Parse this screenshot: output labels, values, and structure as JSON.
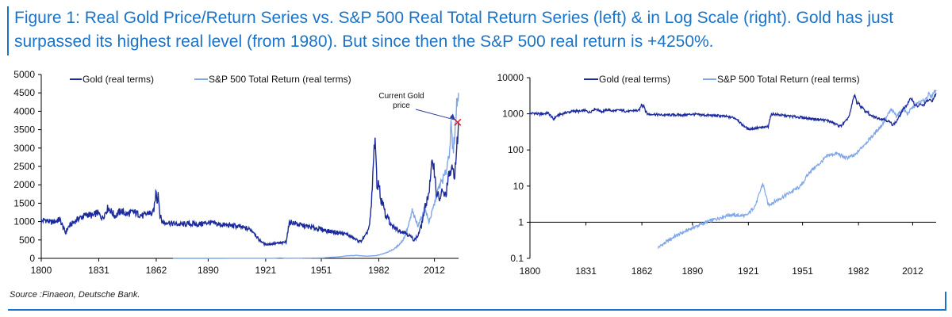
{
  "header": {
    "title": "Figure 1: Real Gold Price/Return Series vs. S&P 500 Real Total Return Series (left) & in Log Scale (right). Gold has just surpassed its highest real level (from 1980). But since then the S&P 500 real return is +4250%."
  },
  "footer": {
    "source": "Source :Finaeon, Deutsche Bank."
  },
  "colors": {
    "gold": "#1b2a9c",
    "sp500": "#7fa7e8",
    "marker": "#e02020",
    "frame": "#1a73c8"
  },
  "chart_data": [
    {
      "type": "line",
      "scale": "linear",
      "ylim": [
        0,
        5000
      ],
      "yticks": [
        "0",
        "500",
        "1000",
        "1500",
        "2000",
        "2500",
        "3000",
        "3500",
        "4000",
        "4500",
        "5000"
      ],
      "xlim": [
        1800,
        2025
      ],
      "xticks": [
        "1800",
        "1831",
        "1862",
        "1890",
        "1921",
        "1951",
        "1982",
        "2012"
      ],
      "legend_position": "top",
      "grid": false,
      "annotation": {
        "text_line1": "Current Gold",
        "text_line2": "price",
        "x": 2024.5,
        "y": 3700
      },
      "series": [
        {
          "name": "Gold (real terms)",
          "x": [
            1800,
            1802,
            1805,
            1808,
            1810,
            1812,
            1813,
            1815,
            1818,
            1820,
            1825,
            1828,
            1830,
            1833,
            1836,
            1839,
            1840,
            1843,
            1846,
            1850,
            1855,
            1858,
            1860,
            1861,
            1862,
            1862.5,
            1863,
            1864,
            1865,
            1866,
            1867,
            1868,
            1870,
            1875,
            1880,
            1885,
            1890,
            1895,
            1900,
            1905,
            1910,
            1913,
            1915,
            1917,
            1919,
            1920,
            1921,
            1925,
            1930,
            1932,
            1933,
            1934,
            1935,
            1940,
            1945,
            1950,
            1955,
            1960,
            1965,
            1970,
            1972,
            1974,
            1975,
            1976,
            1977,
            1978,
            1979,
            1980,
            1980.5,
            1981,
            1982,
            1983,
            1984,
            1985,
            1986,
            1987,
            1988,
            1990,
            1993,
            1996,
            1999,
            2001,
            2003,
            2005,
            2007,
            2008,
            2009,
            2010,
            2011,
            2012,
            2013,
            2014,
            2015,
            2016,
            2018,
            2020,
            2022,
            2023,
            2024,
            2025
          ],
          "values": [
            1000,
            1050,
            980,
            1010,
            1060,
            820,
            700,
            880,
            1000,
            1080,
            1200,
            1150,
            1250,
            1100,
            1380,
            1200,
            1150,
            1300,
            1200,
            1260,
            1150,
            1250,
            1200,
            1400,
            1900,
            1550,
            1800,
            1200,
            1000,
            980,
            950,
            1000,
            950,
            920,
            940,
            920,
            980,
            930,
            900,
            880,
            820,
            780,
            700,
            520,
            450,
            400,
            380,
            400,
            420,
            450,
            750,
            1000,
            980,
            900,
            850,
            800,
            740,
            700,
            650,
            500,
            450,
            560,
            620,
            750,
            900,
            1400,
            2500,
            3400,
            2600,
            1900,
            2100,
            1600,
            1500,
            1300,
            1100,
            1200,
            900,
            850,
            750,
            720,
            600,
            500,
            600,
            900,
            1400,
            1600,
            1800,
            2200,
            2700,
            2400,
            1800,
            1700,
            1600,
            1800,
            1700,
            2300,
            2400,
            2300,
            2900,
            3700
          ]
        },
        {
          "name": "S&P 500 Total Return (real terms)",
          "x": [
            1871,
            1880,
            1890,
            1900,
            1910,
            1920,
            1925,
            1929,
            1932,
            1940,
            1950,
            1955,
            1960,
            1965,
            1970,
            1975,
            1980,
            1985,
            1990,
            1995,
            2000,
            2003,
            2007,
            2009,
            2013,
            2015,
            2018,
            2019,
            2020,
            2021,
            2022,
            2023,
            2024,
            2025
          ],
          "values": [
            0.2,
            0.4,
            0.7,
            1.1,
            1.6,
            1.5,
            3,
            12,
            3,
            5,
            10,
            25,
            40,
            70,
            80,
            60,
            70,
            140,
            250,
            500,
            1300,
            900,
            1350,
            1000,
            1700,
            2000,
            2300,
            2600,
            2900,
            3600,
            2900,
            3400,
            4200,
            4500
          ]
        }
      ]
    },
    {
      "type": "line",
      "scale": "log",
      "ylim": [
        0.1,
        10000
      ],
      "yticks": [
        "0.1",
        "1",
        "10",
        "100",
        "1000",
        "10000"
      ],
      "xlim": [
        1800,
        2025
      ],
      "xticks": [
        "1800",
        "1831",
        "1862",
        "1890",
        "1921",
        "1951",
        "1982",
        "2012"
      ],
      "legend_position": "top",
      "grid": false,
      "series": [
        {
          "name": "Gold (real terms)",
          "ref_series": 0
        },
        {
          "name": "S&P 500 Total Return (real terms)",
          "ref_series": 1
        }
      ]
    }
  ]
}
